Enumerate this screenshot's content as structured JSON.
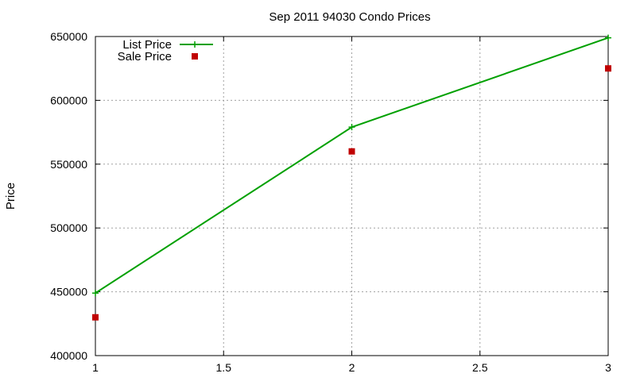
{
  "chart_data": {
    "type": "line",
    "title": "Sep 2011 94030 Condo Prices",
    "xlabel": "",
    "ylabel": "Price",
    "xlim": [
      1,
      3
    ],
    "ylim": [
      400000,
      650000
    ],
    "xticks": [
      "1",
      "1.5",
      "2",
      "2.5",
      "3"
    ],
    "yticks": [
      "400000",
      "450000",
      "500000",
      "550000",
      "600000",
      "650000"
    ],
    "grid": true,
    "legend_position": "top-left",
    "series": [
      {
        "name": "List Price",
        "style": "line+cross",
        "color": "#00a000",
        "x": [
          1,
          2,
          3
        ],
        "y": [
          449000,
          579000,
          649000
        ]
      },
      {
        "name": "Sale Price",
        "style": "square",
        "color": "#c00000",
        "x": [
          1,
          2,
          3
        ],
        "y": [
          430000,
          560000,
          625000
        ]
      }
    ]
  }
}
